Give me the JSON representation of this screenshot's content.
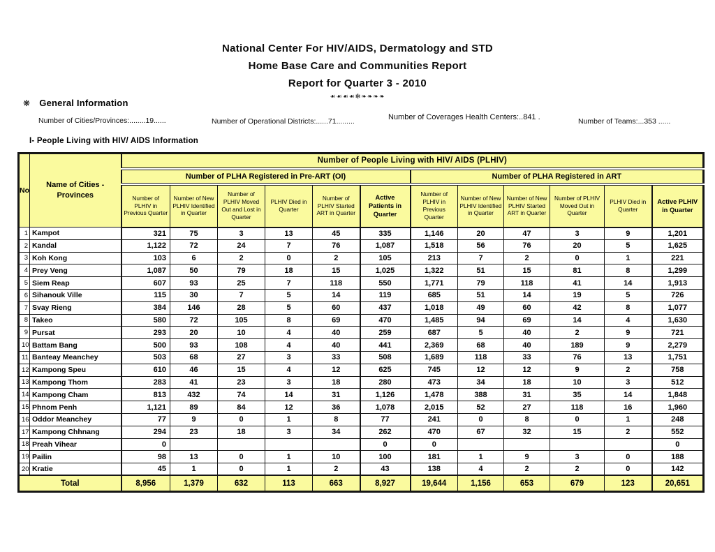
{
  "report": {
    "title_line1": "National Center For HIV/AIDS, Dermatology and STD",
    "title_line2": "Home Base Care and Communities Report",
    "title_line3": "Report for Quarter 3 - 2010",
    "ornament": "☙☙☙☙✻❧❧❧❧"
  },
  "general_info": {
    "bullet": "❋",
    "heading": "General Information",
    "fields": [
      "Number of Cities/Provinces:........19......",
      "Number of Operational Districts:......71.........",
      "Number of Coverages Health Centers:..841 .",
      "Number of Teams:...353 ......"
    ]
  },
  "section_heading": "I- People Living with HIV/ AIDS Information",
  "table": {
    "no_header": "No.",
    "name_header": "Name of Cities - Provinces",
    "top_band": "Number of People Living with HIV/ AIDS (PLHIV)",
    "preart_band": "Number of PLHA Registered in Pre-ART (OI)",
    "art_band": "Number of PLHA Registered in ART",
    "preart_cols": [
      "Number of PLHIV in Previous Quarter",
      "Number of New PLHIV Identified in Quarter",
      "Number of PLHIV Moved Out and Lost in Quarter",
      "PLHIV Died in Quarter",
      "Number of PLHIV Started ART in Quarter",
      "Active Patients in Quarter"
    ],
    "art_cols": [
      "Number of PLHIV in Previous Quarter",
      "Number of New PLHIV Identified in Quarter",
      "Number of New PLHIV Started ART in Quarter",
      "Number of PLHIV Moved Out in Quarter",
      "PLHIV Died in Quarter",
      "Active PLHIV in Quarter"
    ],
    "rows": [
      {
        "no": "1",
        "name": "Kampot",
        "pre": [
          "321",
          "75",
          "3",
          "13",
          "45",
          "335"
        ],
        "art": [
          "1,146",
          "20",
          "47",
          "3",
          "9",
          "1,201"
        ]
      },
      {
        "no": "2",
        "name": "Kandal",
        "pre": [
          "1,122",
          "72",
          "24",
          "7",
          "76",
          "1,087"
        ],
        "art": [
          "1,518",
          "56",
          "76",
          "20",
          "5",
          "1,625"
        ]
      },
      {
        "no": "3",
        "name": "Koh Kong",
        "pre": [
          "103",
          "6",
          "2",
          "0",
          "2",
          "105"
        ],
        "art": [
          "213",
          "7",
          "2",
          "0",
          "1",
          "221"
        ]
      },
      {
        "no": "4",
        "name": "Prey Veng",
        "pre": [
          "1,087",
          "50",
          "79",
          "18",
          "15",
          "1,025"
        ],
        "art": [
          "1,322",
          "51",
          "15",
          "81",
          "8",
          "1,299"
        ]
      },
      {
        "no": "5",
        "name": "Siem Reap",
        "pre": [
          "607",
          "93",
          "25",
          "7",
          "118",
          "550"
        ],
        "art": [
          "1,771",
          "79",
          "118",
          "41",
          "14",
          "1,913"
        ]
      },
      {
        "no": "6",
        "name": "Sihanouk Ville",
        "pre": [
          "115",
          "30",
          "7",
          "5",
          "14",
          "119"
        ],
        "art": [
          "685",
          "51",
          "14",
          "19",
          "5",
          "726"
        ]
      },
      {
        "no": "7",
        "name": "Svay Rieng",
        "pre": [
          "384",
          "146",
          "28",
          "5",
          "60",
          "437"
        ],
        "art": [
          "1,018",
          "49",
          "60",
          "42",
          "8",
          "1,077"
        ]
      },
      {
        "no": "8",
        "name": "Takeo",
        "pre": [
          "580",
          "72",
          "105",
          "8",
          "69",
          "470"
        ],
        "art": [
          "1,485",
          "94",
          "69",
          "14",
          "4",
          "1,630"
        ]
      },
      {
        "no": "9",
        "name": "Pursat",
        "pre": [
          "293",
          "20",
          "10",
          "4",
          "40",
          "259"
        ],
        "art": [
          "687",
          "5",
          "40",
          "2",
          "9",
          "721"
        ]
      },
      {
        "no": "10",
        "name": "Battam Bang",
        "pre": [
          "500",
          "93",
          "108",
          "4",
          "40",
          "441"
        ],
        "art": [
          "2,369",
          "68",
          "40",
          "189",
          "9",
          "2,279"
        ]
      },
      {
        "no": "11",
        "name": "Banteay Meanchey",
        "pre": [
          "503",
          "68",
          "27",
          "3",
          "33",
          "508"
        ],
        "art": [
          "1,689",
          "118",
          "33",
          "76",
          "13",
          "1,751"
        ]
      },
      {
        "no": "12",
        "name": "Kampong Speu",
        "pre": [
          "610",
          "46",
          "15",
          "4",
          "12",
          "625"
        ],
        "art": [
          "745",
          "12",
          "12",
          "9",
          "2",
          "758"
        ]
      },
      {
        "no": "13",
        "name": "Kampong Thom",
        "pre": [
          "283",
          "41",
          "23",
          "3",
          "18",
          "280"
        ],
        "art": [
          "473",
          "34",
          "18",
          "10",
          "3",
          "512"
        ]
      },
      {
        "no": "14",
        "name": "Kampong Cham",
        "pre": [
          "813",
          "432",
          "74",
          "14",
          "31",
          "1,126"
        ],
        "art": [
          "1,478",
          "388",
          "31",
          "35",
          "14",
          "1,848"
        ]
      },
      {
        "no": "15",
        "name": "Phnom Penh",
        "pre": [
          "1,121",
          "89",
          "84",
          "12",
          "36",
          "1,078"
        ],
        "art": [
          "2,015",
          "52",
          "27",
          "118",
          "16",
          "1,960"
        ]
      },
      {
        "no": "16",
        "name": "Oddor Meanchey",
        "pre": [
          "77",
          "9",
          "0",
          "1",
          "8",
          "77"
        ],
        "art": [
          "241",
          "0",
          "8",
          "0",
          "1",
          "248"
        ]
      },
      {
        "no": "17",
        "name": "Kampong Chhnang",
        "pre": [
          "294",
          "23",
          "18",
          "3",
          "34",
          "262"
        ],
        "art": [
          "470",
          "67",
          "32",
          "15",
          "2",
          "552"
        ]
      },
      {
        "no": "18",
        "name": "Preah Vihear",
        "pre": [
          "0",
          "",
          "",
          "",
          "",
          "0"
        ],
        "art": [
          "0",
          "",
          "",
          "",
          "",
          "0"
        ]
      },
      {
        "no": "19",
        "name": "Pailin",
        "pre": [
          "98",
          "13",
          "0",
          "1",
          "10",
          "100"
        ],
        "art": [
          "181",
          "1",
          "9",
          "3",
          "0",
          "188"
        ]
      },
      {
        "no": "20",
        "name": "Kratie",
        "pre": [
          "45",
          "1",
          "0",
          "1",
          "2",
          "43"
        ],
        "art": [
          "138",
          "4",
          "2",
          "2",
          "0",
          "142"
        ]
      }
    ],
    "total_label": "Total",
    "total_pre": [
      "8,956",
      "1,379",
      "632",
      "113",
      "663",
      "8,927"
    ],
    "total_art": [
      "19,644",
      "1,156",
      "653",
      "679",
      "123",
      "20,651"
    ]
  },
  "colors": {
    "header_bg": "#FAFA9E",
    "border": "#151515",
    "text": "#000000",
    "page_bg": "#FFFFFF"
  }
}
